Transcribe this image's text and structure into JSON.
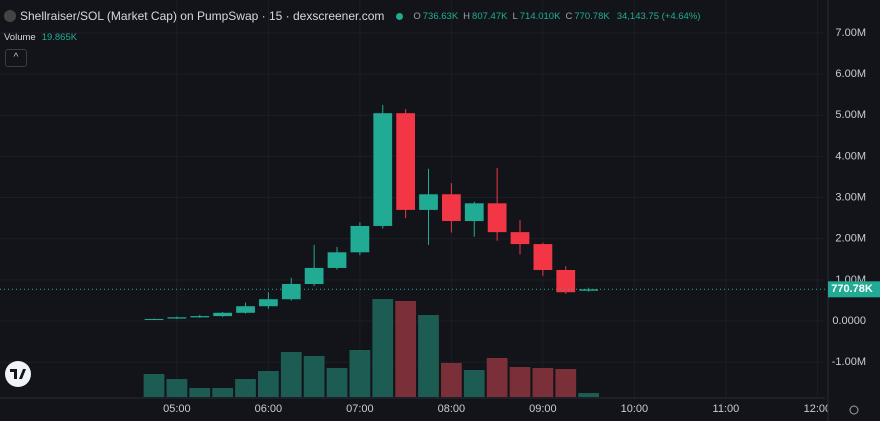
{
  "header": {
    "title": "Shellraiser/SOL (Market Cap) on PumpSwap · 15 · dexscreener.com",
    "ohlc": [
      {
        "key": "O",
        "value": "736.63K"
      },
      {
        "key": "H",
        "value": "807.47K"
      },
      {
        "key": "L",
        "value": "714.010K"
      },
      {
        "key": "C",
        "value": "770.78K"
      }
    ],
    "change": "34,143.75 (+4.64%)",
    "volume_label": "Volume",
    "volume_value": "19.865K"
  },
  "chart_data": {
    "type": "candlestick",
    "x": [
      285,
      300,
      315,
      330,
      345,
      360,
      375,
      390,
      405,
      420,
      435,
      450,
      465,
      480,
      495,
      510,
      525,
      540,
      555,
      570
    ],
    "open": [
      40000,
      60000,
      90000,
      120000,
      200000,
      360000,
      530000,
      900000,
      1290000,
      1670000,
      2310000,
      5050000,
      2700000,
      3080000,
      2430000,
      2860000,
      2160000,
      1870000,
      1240000,
      736630
    ],
    "high": [
      60000,
      110000,
      150000,
      220000,
      450000,
      700000,
      1050000,
      1850000,
      1800000,
      2400000,
      5250000,
      5150000,
      3700000,
      3350000,
      2900000,
      3720000,
      2450000,
      1900000,
      1330000,
      807470
    ],
    "low": [
      30000,
      50000,
      80000,
      100000,
      180000,
      300000,
      500000,
      850000,
      1250000,
      1600000,
      2250000,
      2500000,
      1850000,
      2150000,
      2050000,
      1950000,
      1620000,
      1100000,
      660000,
      714010
    ],
    "close": [
      50000,
      90000,
      120000,
      200000,
      360000,
      530000,
      900000,
      1290000,
      1670000,
      2310000,
      5050000,
      2700000,
      3080000,
      2430000,
      2860000,
      2160000,
      1870000,
      1240000,
      700000,
      770780
    ],
    "volume": [
      115000,
      90000,
      45000,
      45000,
      90000,
      130000,
      225000,
      205000,
      145000,
      235000,
      490000,
      480000,
      410000,
      170000,
      135000,
      195000,
      150000,
      145000,
      140000,
      19865
    ],
    "up_color": "#22ab94",
    "down_color": "#f23645",
    "volume_up_color": "#1d5c53",
    "volume_down_color": "#7a2f39",
    "last_price": {
      "value": 770780,
      "label": "770.78K"
    },
    "xlim": [
      184,
      725
    ],
    "xticks": [
      {
        "value": 300,
        "label": "05:00"
      },
      {
        "value": 360,
        "label": "06:00"
      },
      {
        "value": 420,
        "label": "07:00"
      },
      {
        "value": 480,
        "label": "08:00"
      },
      {
        "value": 540,
        "label": "09:00"
      },
      {
        "value": 600,
        "label": "10:00"
      },
      {
        "value": 660,
        "label": "11:00"
      },
      {
        "value": 720,
        "label": "12:00"
      }
    ],
    "ylim": [
      -1870000,
      7800000
    ],
    "yticks": [
      {
        "value": 7000000,
        "label": "7.00M"
      },
      {
        "value": 6000000,
        "label": "6.00M"
      },
      {
        "value": 5000000,
        "label": "5.00M"
      },
      {
        "value": 4000000,
        "label": "4.00M"
      },
      {
        "value": 3000000,
        "label": "3.00M"
      },
      {
        "value": 2000000,
        "label": "2.00M"
      },
      {
        "value": 1000000,
        "label": "1.00M"
      },
      {
        "value": 0,
        "label": "0.0000"
      },
      {
        "value": -1000000,
        "label": "-1.00M"
      }
    ],
    "grid": true
  }
}
